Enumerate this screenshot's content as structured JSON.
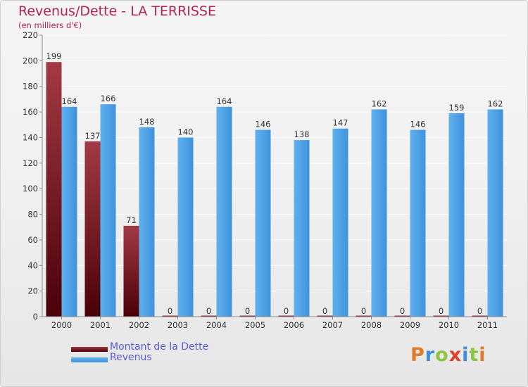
{
  "title": "Revenus/Dette - LA TERRISSE",
  "subtitle": "(en milliers d'€)",
  "colors": {
    "dette": "#7a1520",
    "dette_light": "#a33a44",
    "revenus": "#3f93dc",
    "revenus_light": "#5fb0ee",
    "title": "#b5234f",
    "legend_text": "#5b5bd6"
  },
  "chart_data": {
    "type": "bar",
    "title": "Revenus/Dette - LA TERRISSE",
    "ylabel": "(en milliers d'€)",
    "xlabel": "",
    "categories": [
      "2000",
      "2001",
      "2002",
      "2003",
      "2004",
      "2005",
      "2006",
      "2007",
      "2008",
      "2009",
      "2010",
      "2011"
    ],
    "series": [
      {
        "name": "Montant de la Dette",
        "values": [
          199,
          137,
          71,
          0,
          0,
          0,
          0,
          0,
          0,
          0,
          0,
          0
        ]
      },
      {
        "name": "Revenus",
        "values": [
          164,
          166,
          148,
          140,
          164,
          146,
          138,
          147,
          162,
          146,
          159,
          162
        ]
      }
    ],
    "ylim": [
      0,
      220
    ],
    "yticks": [
      0,
      20,
      40,
      60,
      80,
      100,
      120,
      140,
      160,
      180,
      200,
      220
    ],
    "grid": true,
    "legend_position": "bottom-left"
  },
  "legend": [
    {
      "label": "Montant de la Dette"
    },
    {
      "label": "Revenus"
    }
  ],
  "logo": {
    "letters": [
      "P",
      "r",
      "o",
      "x",
      "i",
      "t",
      "i"
    ],
    "colors": [
      "#e07b2a",
      "#3a8fd8",
      "#8cc63f",
      "#e0402a",
      "#3a8fd8",
      "#8cc63f",
      "#e07b2a"
    ]
  }
}
